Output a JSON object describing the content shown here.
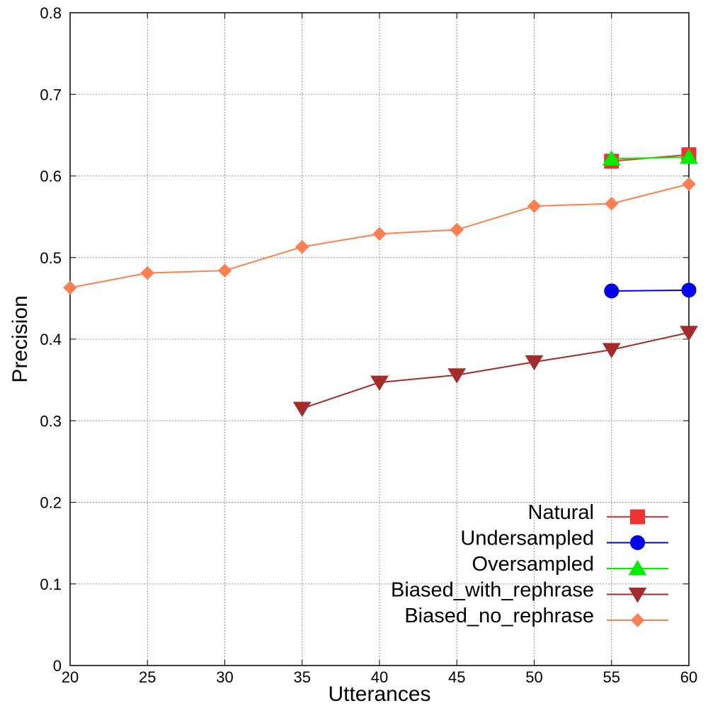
{
  "chart_data": {
    "type": "line",
    "title": "",
    "xlabel": "Utterances",
    "ylabel": "Precision",
    "xlim": [
      20,
      60
    ],
    "ylim": [
      0,
      0.8
    ],
    "xticks": [
      20,
      25,
      30,
      35,
      40,
      45,
      50,
      55,
      60
    ],
    "yticks": [
      0,
      0.1,
      0.2,
      0.3,
      0.4,
      0.5,
      0.6,
      0.7,
      0.8
    ],
    "xtick_labels": [
      "20",
      "25",
      "30",
      "35",
      "40",
      "45",
      "50",
      "55",
      "60"
    ],
    "ytick_labels": [
      "0",
      "0.1",
      "0.2",
      "0.3",
      "0.4",
      "0.5",
      "0.6",
      "0.7",
      "0.8"
    ],
    "grid": true,
    "legend_position": "bottom-right",
    "series": [
      {
        "name": "Natural",
        "color": "#ee3333",
        "marker": "square",
        "x": [
          55,
          60
        ],
        "y": [
          0.618,
          0.626
        ]
      },
      {
        "name": "Undersampled",
        "color": "#0000ee",
        "marker": "circle",
        "x": [
          55,
          60
        ],
        "y": [
          0.459,
          0.46
        ]
      },
      {
        "name": "Oversampled",
        "color": "#00ee00",
        "marker": "triangle-up",
        "x": [
          55,
          60
        ],
        "y": [
          0.621,
          0.623
        ]
      },
      {
        "name": "Biased_with_rephrase",
        "color": "#a52a2a",
        "marker": "triangle-down",
        "x": [
          35,
          40,
          45,
          50,
          55,
          60
        ],
        "y": [
          0.315,
          0.347,
          0.356,
          0.372,
          0.387,
          0.408
        ]
      },
      {
        "name": "Biased_no_rephrase",
        "color": "#ff7f50",
        "marker": "diamond",
        "x": [
          20,
          25,
          30,
          35,
          40,
          45,
          50,
          55,
          60
        ],
        "y": [
          0.463,
          0.481,
          0.484,
          0.513,
          0.529,
          0.534,
          0.563,
          0.566,
          0.59
        ]
      }
    ]
  }
}
